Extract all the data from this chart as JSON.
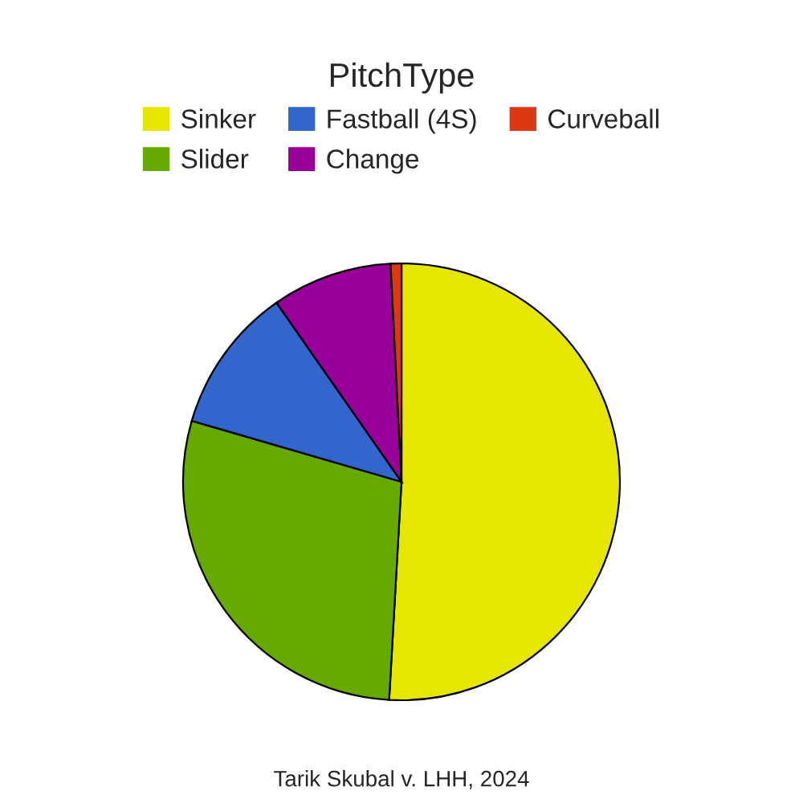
{
  "chart_data": {
    "type": "pie",
    "legend_title": "PitchType",
    "legend": "top",
    "categories": [
      "Sinker",
      "Slider",
      "Fastball (4S)",
      "Change",
      "Curveball"
    ],
    "values": [
      50.9,
      28.6,
      10.8,
      8.9,
      0.8
    ],
    "colors": [
      "#e6e600",
      "#66aa00",
      "#3366cc",
      "#990099",
      "#dc3912"
    ],
    "annotations": [
      "Tarik Skubal v. LHH, 2024"
    ]
  }
}
